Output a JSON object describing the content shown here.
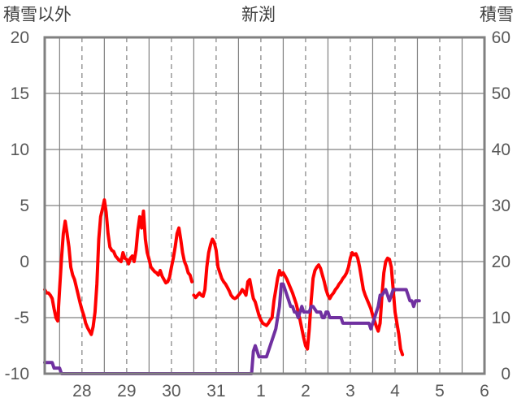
{
  "chart_data": {
    "type": "line",
    "title": "新渕",
    "left_axis_label": "積雪以外",
    "right_axis_label": "積雪",
    "left_ylim": [
      -10,
      20
    ],
    "left_yticks": [
      20,
      15,
      10,
      5,
      0,
      -5,
      -10
    ],
    "right_ylim": [
      0,
      60
    ],
    "right_yticks": [
      60,
      50,
      40,
      30,
      20,
      10,
      0
    ],
    "x_tick_labels": [
      "28",
      "29",
      "30",
      "31",
      "1",
      "2",
      "3",
      "4",
      "5",
      "6"
    ],
    "x_unit": "hours since start of 27th",
    "x_range": [
      16,
      252
    ],
    "grid": true,
    "colors": {
      "red_series": "#ff0000",
      "purple_series": "#7030a0",
      "frame": "#808080",
      "grid": "#808080"
    },
    "series": [
      {
        "name": "",
        "axis": "left",
        "color": "#ff0000",
        "points": [
          [
            16,
            -2.5
          ],
          [
            17,
            -2.8
          ],
          [
            18,
            -2.8
          ],
          [
            19,
            -3.0
          ],
          [
            20,
            -3.3
          ],
          [
            21,
            -4.2
          ],
          [
            22,
            -5.0
          ],
          [
            23,
            -5.3
          ],
          [
            24,
            -2.5
          ],
          [
            25,
            0.2
          ],
          [
            26,
            2.5
          ],
          [
            27,
            3.6
          ],
          [
            28,
            2.5
          ],
          [
            29,
            1.3
          ],
          [
            30,
            -0.5
          ],
          [
            31,
            -1.2
          ],
          [
            32,
            -1.6
          ],
          [
            33,
            -2.3
          ],
          [
            34,
            -3.0
          ],
          [
            35,
            -3.7
          ],
          [
            36,
            -4.3
          ],
          [
            37,
            -4.8
          ],
          [
            38,
            -5.5
          ],
          [
            39,
            -5.9
          ],
          [
            40,
            -6.2
          ],
          [
            41,
            -6.5
          ],
          [
            42,
            -5.8
          ],
          [
            43,
            -4.5
          ],
          [
            44,
            -2.0
          ],
          [
            45,
            2.0
          ],
          [
            46,
            4.0
          ],
          [
            47,
            4.7
          ],
          [
            48,
            5.5
          ],
          [
            49,
            4.4
          ],
          [
            50,
            2.5
          ],
          [
            51,
            1.3
          ],
          [
            52,
            1.0
          ],
          [
            53,
            0.9
          ],
          [
            54,
            0.5
          ],
          [
            55,
            0.3
          ],
          [
            56,
            0.1
          ],
          [
            57,
            0.0
          ],
          [
            58,
            0.8
          ],
          [
            59,
            0.3
          ],
          [
            60,
            0.2
          ],
          [
            61,
            -0.2
          ],
          [
            62,
            0.3
          ],
          [
            63,
            0.5
          ],
          [
            64,
            0.0
          ],
          [
            65,
            1.0
          ],
          [
            66,
            2.8
          ],
          [
            67,
            4.0
          ],
          [
            68,
            3.0
          ],
          [
            69,
            4.5
          ],
          [
            70,
            2.0
          ],
          [
            71,
            0.8
          ],
          [
            72,
            0.2
          ],
          [
            73,
            -0.5
          ],
          [
            74,
            -0.7
          ],
          [
            75,
            -0.9
          ],
          [
            76,
            -1.0
          ],
          [
            77,
            -1.2
          ],
          [
            78,
            -0.8
          ],
          [
            79,
            -1.3
          ],
          [
            80,
            -1.6
          ],
          [
            81,
            -1.9
          ],
          [
            82,
            -1.8
          ],
          [
            83,
            -1.4
          ],
          [
            84,
            -0.5
          ],
          [
            85,
            0.3
          ],
          [
            86,
            1.3
          ],
          [
            87,
            2.5
          ],
          [
            88,
            3.0
          ],
          [
            89,
            2.0
          ],
          [
            90,
            0.8
          ],
          [
            91,
            0.0
          ],
          [
            92,
            -0.4
          ],
          [
            93,
            -1.0
          ],
          [
            94,
            -1.2
          ],
          [
            95,
            -1.8
          ],
          [
            null,
            null
          ],
          [
            96,
            -3.0
          ],
          [
            97,
            -3.2
          ],
          [
            98,
            -3.0
          ],
          [
            99,
            -2.8
          ],
          [
            100,
            -3.0
          ],
          [
            101,
            -3.1
          ],
          [
            102,
            -2.5
          ],
          [
            103,
            -0.5
          ],
          [
            104,
            0.8
          ],
          [
            105,
            1.5
          ],
          [
            106,
            2.0
          ],
          [
            107,
            1.7
          ],
          [
            108,
            1.0
          ],
          [
            109,
            -0.5
          ],
          [
            110,
            -1.0
          ],
          [
            111,
            -1.5
          ],
          [
            112,
            -1.8
          ],
          [
            113,
            -2.0
          ],
          [
            114,
            -2.3
          ],
          [
            115,
            -2.6
          ],
          [
            116,
            -3.0
          ],
          [
            117,
            -3.2
          ],
          [
            118,
            -3.3
          ],
          [
            119,
            -3.2
          ],
          [
            120,
            -3.0
          ],
          [
            121,
            -2.8
          ],
          [
            122,
            -2.5
          ],
          [
            123,
            -2.7
          ],
          [
            124,
            -3.0
          ],
          [
            125,
            -1.8
          ],
          [
            126,
            -1.6
          ],
          [
            127,
            -2.5
          ],
          [
            128,
            -3.3
          ],
          [
            129,
            -3.6
          ],
          [
            130,
            -4.2
          ],
          [
            131,
            -4.8
          ],
          [
            132,
            -5.2
          ],
          [
            133,
            -5.5
          ],
          [
            134,
            -5.6
          ],
          [
            135,
            -5.7
          ],
          [
            136,
            -5.5
          ],
          [
            137,
            -5.2
          ],
          [
            138,
            -5.0
          ],
          [
            139,
            -3.5
          ],
          [
            140,
            -2.5
          ],
          [
            141,
            -1.5
          ],
          [
            142,
            -0.8
          ],
          [
            143,
            -1.2
          ],
          [
            144,
            -1.0
          ],
          [
            145,
            -1.3
          ],
          [
            146,
            -1.6
          ],
          [
            147,
            -2.0
          ],
          [
            148,
            -2.4
          ],
          [
            149,
            -2.8
          ],
          [
            150,
            -3.3
          ],
          [
            151,
            -3.8
          ],
          [
            152,
            -4.5
          ],
          [
            153,
            -5.2
          ],
          [
            154,
            -6.0
          ],
          [
            155,
            -6.8
          ],
          [
            156,
            -7.5
          ],
          [
            157,
            -7.8
          ],
          [
            158,
            -6.0
          ],
          [
            159,
            -3.5
          ],
          [
            160,
            -1.5
          ],
          [
            161,
            -0.8
          ],
          [
            162,
            -0.5
          ],
          [
            163,
            -0.3
          ],
          [
            164,
            -0.6
          ],
          [
            165,
            -1.2
          ],
          [
            166,
            -1.8
          ],
          [
            167,
            -2.5
          ],
          [
            168,
            -3.0
          ],
          [
            169,
            -3.3
          ],
          [
            170,
            -3.0
          ],
          [
            171,
            -2.8
          ],
          [
            172,
            -2.5
          ],
          [
            173,
            -2.3
          ],
          [
            174,
            -2.0
          ],
          [
            175,
            -1.8
          ],
          [
            176,
            -1.5
          ],
          [
            177,
            -1.3
          ],
          [
            178,
            -1.0
          ],
          [
            179,
            -0.5
          ],
          [
            180,
            0.3
          ],
          [
            181,
            0.8
          ],
          [
            182,
            0.6
          ],
          [
            183,
            0.7
          ],
          [
            184,
            0.3
          ],
          [
            185,
            -0.5
          ],
          [
            186,
            -1.5
          ],
          [
            187,
            -2.5
          ],
          [
            188,
            -3.0
          ],
          [
            189,
            -3.4
          ],
          [
            190,
            -3.8
          ],
          [
            191,
            -4.2
          ],
          [
            192,
            -4.8
          ],
          [
            193,
            -5.3
          ],
          [
            194,
            -5.8
          ],
          [
            195,
            -6.2
          ],
          [
            196,
            -5.5
          ],
          [
            197,
            -3.0
          ],
          [
            198,
            -1.0
          ],
          [
            199,
            0.0
          ],
          [
            200,
            0.3
          ],
          [
            201,
            0.2
          ],
          [
            202,
            -0.5
          ],
          [
            203,
            -2.5
          ],
          [
            204,
            -4.5
          ],
          [
            205,
            -5.5
          ],
          [
            206,
            -6.5
          ],
          [
            207,
            -7.8
          ],
          [
            208,
            -8.3
          ]
        ]
      },
      {
        "name": "",
        "axis": "right",
        "color": "#7030a0",
        "points": [
          [
            16,
            2
          ],
          [
            20,
            2
          ],
          [
            21,
            1
          ],
          [
            24,
            1
          ],
          [
            25,
            0
          ],
          [
            127,
            0
          ],
          [
            128,
            4
          ],
          [
            129,
            5
          ],
          [
            130,
            4
          ],
          [
            131,
            3
          ],
          [
            135,
            3
          ],
          [
            136,
            4
          ],
          [
            138,
            6
          ],
          [
            139,
            7
          ],
          [
            140,
            8
          ],
          [
            141,
            10
          ],
          [
            142,
            12
          ],
          [
            143,
            16
          ],
          [
            144,
            16
          ],
          [
            145,
            15
          ],
          [
            146,
            14
          ],
          [
            147,
            13
          ],
          [
            148,
            12
          ],
          [
            149,
            12
          ],
          [
            150,
            11
          ],
          [
            151,
            11
          ],
          [
            152,
            10
          ],
          [
            153,
            11
          ],
          [
            154,
            12
          ],
          [
            155,
            11
          ],
          [
            156,
            11
          ],
          [
            158,
            11
          ],
          [
            159,
            12
          ],
          [
            160,
            12
          ],
          [
            162,
            11
          ],
          [
            164,
            11
          ],
          [
            165,
            10
          ],
          [
            166,
            10
          ],
          [
            167,
            11
          ],
          [
            168,
            11
          ],
          [
            169,
            10
          ],
          [
            175,
            10
          ],
          [
            176,
            9
          ],
          [
            190,
            9
          ],
          [
            191,
            8
          ],
          [
            192,
            9
          ],
          [
            193,
            10
          ],
          [
            194,
            11
          ],
          [
            195,
            12
          ],
          [
            196,
            14
          ],
          [
            197,
            14
          ],
          [
            199,
            15
          ],
          [
            200,
            14
          ],
          [
            201,
            13
          ],
          [
            202,
            14
          ],
          [
            203,
            15
          ],
          [
            210,
            15
          ],
          [
            211,
            14
          ],
          [
            212,
            13
          ],
          [
            213,
            13
          ],
          [
            214,
            12
          ],
          [
            215,
            13
          ],
          [
            216,
            13
          ],
          [
            217,
            13
          ]
        ]
      }
    ]
  }
}
